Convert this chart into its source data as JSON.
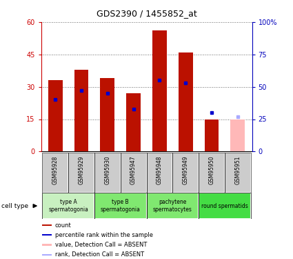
{
  "title": "GDS2390 / 1455852_at",
  "samples": [
    "GSM95928",
    "GSM95929",
    "GSM95930",
    "GSM95947",
    "GSM95948",
    "GSM95949",
    "GSM95950",
    "GSM95951"
  ],
  "counts": [
    33,
    38,
    34,
    27,
    56,
    46,
    15,
    null
  ],
  "ranks_pct": [
    40,
    47,
    45,
    33,
    55,
    53,
    30,
    null
  ],
  "absent_count": [
    null,
    null,
    null,
    null,
    null,
    null,
    null,
    15
  ],
  "absent_rank": [
    null,
    null,
    null,
    null,
    null,
    null,
    null,
    27
  ],
  "cell_groups": [
    {
      "label": "type A\nspermatogonia",
      "start": 0,
      "end": 2,
      "color": "#c8f0c0"
    },
    {
      "label": "type B\nspermatogonia",
      "start": 2,
      "end": 4,
      "color": "#80e870"
    },
    {
      "label": "pachytene\nspermatocytes",
      "start": 4,
      "end": 6,
      "color": "#80e870"
    },
    {
      "label": "round spermatids",
      "start": 6,
      "end": 8,
      "color": "#44dd44"
    }
  ],
  "ylim_left": [
    0,
    60
  ],
  "ylim_right": [
    0,
    100
  ],
  "yticks_left": [
    0,
    15,
    30,
    45,
    60
  ],
  "yticks_right": [
    0,
    25,
    50,
    75,
    100
  ],
  "ytick_labels_right": [
    "0",
    "25",
    "50",
    "75",
    "100%"
  ],
  "bar_color": "#bb1100",
  "rank_color": "#0000cc",
  "absent_bar_color": "#ffb8b8",
  "absent_rank_color": "#aaaaff",
  "left_tick_color": "#cc0000",
  "right_tick_color": "#0000bb",
  "grid_color": "#000000",
  "sample_box_color": "#cccccc",
  "bar_width": 0.55,
  "title_fontsize": 9,
  "tick_fontsize": 7,
  "sample_fontsize": 5.5,
  "cell_fontsize": 5.5,
  "legend_fontsize": 6
}
